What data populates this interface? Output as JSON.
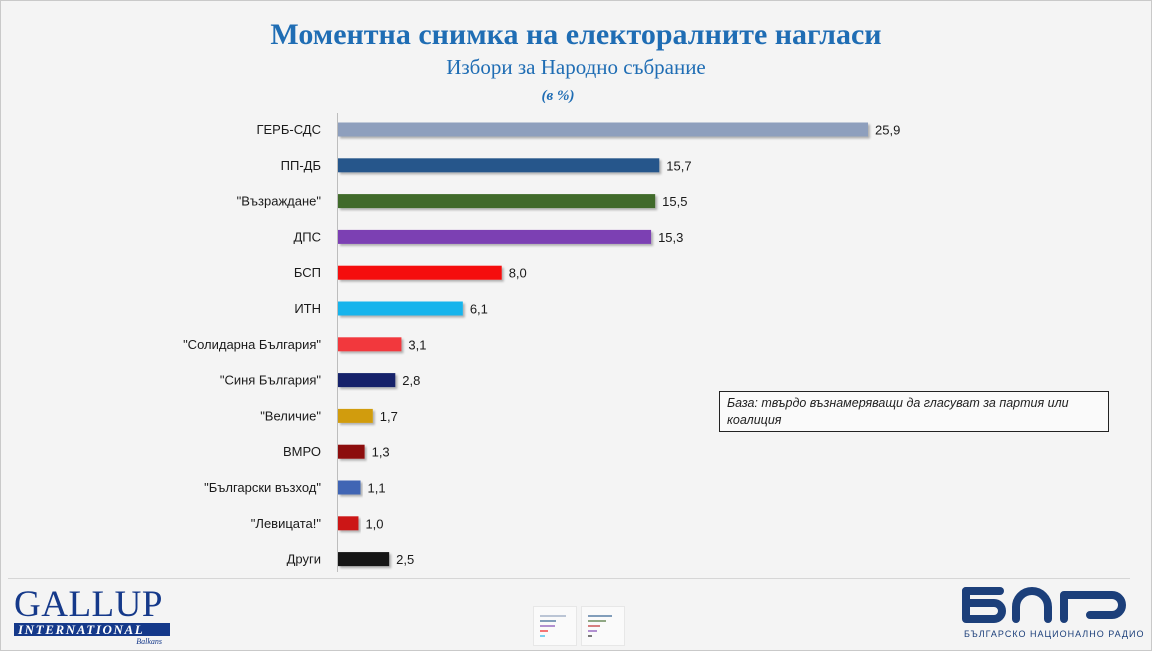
{
  "header": {
    "title": "Моментна снимка на електоралните нагласи",
    "subtitle": "Избори за Народно събрание",
    "unit": "(в %)"
  },
  "note": "База: твърдо възнамеряващи да гласуват за партия или коалиция",
  "logos": {
    "gallup_word": "GALLUP",
    "gallup_band": "INTERNATIONAL",
    "gallup_sub": "Balkans",
    "bnr_caption": "БЪЛГАРСКО НАЦИОНАЛНО РАДИО"
  },
  "chart_data": {
    "type": "bar",
    "orientation": "horizontal",
    "title": "Моментна снимка на електоралните нагласи",
    "subtitle": "Избори за Народно събрание",
    "unit": "(в %)",
    "categories": [
      "ГЕРБ-СДС",
      "ПП-ДБ",
      "\"Възраждане\"",
      "ДПС",
      "БСП",
      "ИТН",
      "\"Солидарна България\"",
      "\"Синя България\"",
      "\"Величие\"",
      "ВМРО",
      "\"Български възход\"",
      "\"Левицата!\"",
      "Други"
    ],
    "values": [
      25.9,
      15.7,
      15.5,
      15.3,
      8.0,
      6.1,
      3.1,
      2.8,
      1.7,
      1.3,
      1.1,
      1.0,
      2.5
    ],
    "value_labels": [
      "25,9",
      "15,7",
      "15,5",
      "15,3",
      "8,0",
      "6,1",
      "3,1",
      "2,8",
      "1,7",
      "1,3",
      "1,1",
      "1,0",
      "2,5"
    ],
    "colors": [
      "#8e9fbd",
      "#25578b",
      "#3f6b29",
      "#7b3fb3",
      "#f50f0f",
      "#18b4ec",
      "#f2393c",
      "#14216a",
      "#d19c0c",
      "#8c1010",
      "#3f65b4",
      "#cc1414",
      "#141414"
    ],
    "xlim": [
      0,
      26
    ],
    "grid": false,
    "legend": "none"
  }
}
